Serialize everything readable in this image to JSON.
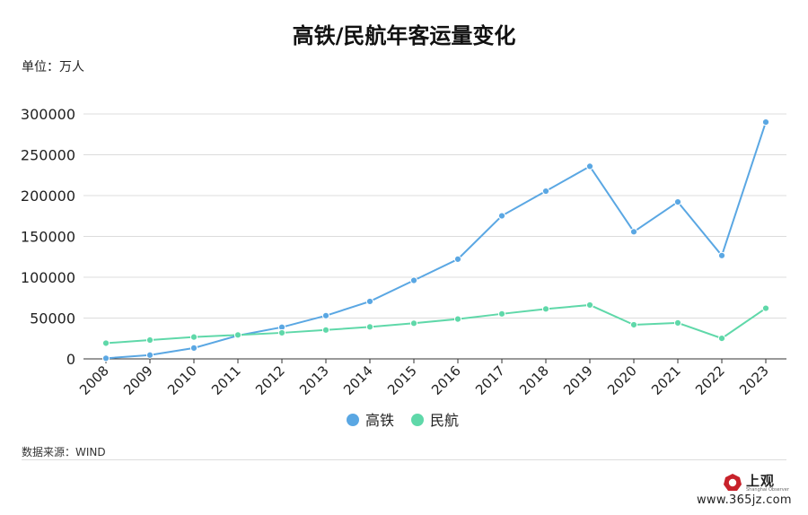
{
  "chart_data": {
    "type": "line",
    "title": "高铁/民航年客运量变化",
    "unit_label": "单位：万人",
    "x": [
      "2008",
      "2009",
      "2010",
      "2011",
      "2012",
      "2013",
      "2014",
      "2015",
      "2016",
      "2017",
      "2018",
      "2019",
      "2020",
      "2021",
      "2022",
      "2023"
    ],
    "ylim": [
      0,
      300000
    ],
    "yticks": [
      0,
      50000,
      100000,
      150000,
      200000,
      250000,
      300000
    ],
    "grid": true,
    "legend_position": "bottom-center",
    "series": [
      {
        "name": "高铁",
        "color": "#5aa7e3",
        "values": [
          734,
          4651,
          13323,
          28552,
          38815,
          52962,
          70378,
          96139,
          122128,
          175216,
          205430,
          235833,
          155707,
          192236,
          126590,
          290000
        ]
      },
      {
        "name": "民航",
        "color": "#5fd8a9",
        "values": [
          19251,
          23052,
          26769,
          29317,
          31936,
          35397,
          39195,
          43618,
          48796,
          55156,
          61174,
          65993,
          41778,
          44056,
          25171,
          62000
        ]
      }
    ]
  },
  "footer": {
    "source": "数据来源：WIND",
    "logo_name": "上观",
    "logo_sub": "Shanghai Observer",
    "watermark": "www.365jz.com"
  }
}
